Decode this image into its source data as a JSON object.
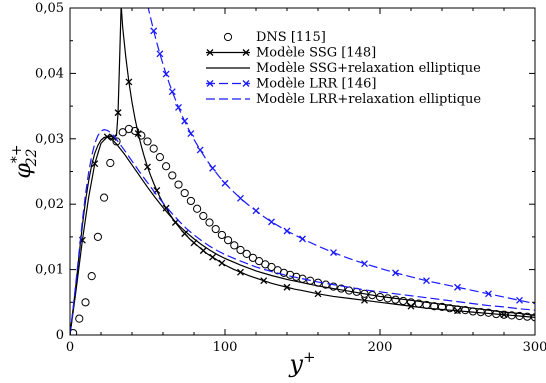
{
  "chart_data": {
    "type": "line",
    "title": "",
    "xlabel": "y",
    "xlabel_sup": "+",
    "ylabel": "φ",
    "ylabel_sub": "22",
    "ylabel_sup": "*+",
    "xlim": [
      0,
      300
    ],
    "ylim": [
      0,
      0.05
    ],
    "x_ticks": [
      0,
      100,
      200,
      300
    ],
    "x_tick_labels": [
      "0",
      "100",
      "200",
      "300"
    ],
    "y_ticks": [
      0,
      0.01,
      0.02,
      0.03,
      0.04,
      0.05
    ],
    "y_tick_labels": [
      "0",
      "0,01",
      "0,02",
      "0,03",
      "0,04",
      "0,05"
    ],
    "grid": false,
    "legend_position": "top-right",
    "series": [
      {
        "name": "DNS [115]",
        "style": "markers-circle",
        "color": "#000000",
        "x": [
          2,
          6,
          10,
          14,
          18,
          22,
          26,
          30,
          34,
          38,
          42,
          46,
          50,
          54,
          58,
          62,
          66,
          70,
          74,
          78,
          82,
          86,
          90,
          94,
          98,
          102,
          106,
          110,
          114,
          118,
          122,
          126,
          130,
          134,
          138,
          142,
          146,
          150,
          155,
          160,
          165,
          170,
          175,
          180,
          185,
          190,
          195,
          200,
          205,
          210,
          215,
          220,
          225,
          230,
          235,
          240,
          245,
          250,
          255,
          260,
          265,
          270,
          275,
          280,
          285,
          290,
          295,
          300
        ],
        "y": [
          0.0003,
          0.0025,
          0.005,
          0.009,
          0.015,
          0.021,
          0.0263,
          0.0296,
          0.031,
          0.0315,
          0.0312,
          0.0305,
          0.0296,
          0.0285,
          0.0272,
          0.0258,
          0.0244,
          0.023,
          0.0217,
          0.0205,
          0.0193,
          0.0182,
          0.0172,
          0.0162,
          0.0153,
          0.0145,
          0.0137,
          0.013,
          0.0124,
          0.0118,
          0.0113,
          0.0108,
          0.0104,
          0.0099,
          0.0095,
          0.0092,
          0.0089,
          0.0086,
          0.0083,
          0.008,
          0.0077,
          0.0074,
          0.0071,
          0.0068,
          0.0066,
          0.0063,
          0.0061,
          0.0058,
          0.0056,
          0.0054,
          0.0052,
          0.005,
          0.0048,
          0.0046,
          0.0044,
          0.0043,
          0.0041,
          0.0039,
          0.0038,
          0.0036,
          0.0035,
          0.0034,
          0.0032,
          0.0031,
          0.003,
          0.0029,
          0.0028,
          0.0027
        ]
      },
      {
        "name": "Modèle SSG [148]",
        "style": "solid-x",
        "color": "#000000",
        "x": [
          0,
          4,
          8,
          12,
          16,
          20,
          24,
          28,
          32,
          36,
          40,
          44,
          48,
          52,
          56,
          60,
          65,
          70,
          75,
          80,
          85,
          90,
          95,
          100,
          105,
          110,
          115,
          120,
          125,
          130,
          135,
          140,
          145,
          150,
          160,
          170,
          180,
          190,
          200,
          210,
          220,
          230,
          240,
          250,
          260,
          270,
          280,
          290,
          300
        ],
        "y": [
          0,
          0.007,
          0.015,
          0.022,
          0.027,
          0.03,
          0.03,
          0.029,
          0.028,
          0.027,
          0.026,
          0.025,
          0.024,
          0.023,
          0.022,
          0.021,
          0.0198,
          0.0186,
          0.0175,
          0.0165,
          0.0155,
          0.0146,
          0.0138,
          0.013,
          0.0123,
          0.0117,
          0.0111,
          0.0106,
          0.0101,
          0.0097,
          0.0093,
          0.0089,
          0.0086,
          0.0083,
          0.0077,
          0.0072,
          0.0067,
          0.0062,
          0.0058,
          0.0054,
          0.005,
          0.0047,
          0.0044,
          0.0041,
          0.0038,
          0.0035,
          0.0033,
          0.003,
          0.0028
        ],
        "y_left": [
          null,
          null,
          null,
          null,
          null,
          null,
          null,
          null,
          null,
          0.0555,
          0.05
        ],
        "dense_x": [
          33,
          34,
          36,
          38,
          40,
          42,
          44,
          46,
          48,
          50,
          52,
          54,
          56,
          58,
          60,
          62,
          64,
          66,
          68,
          70,
          72,
          74,
          76,
          78,
          80,
          82,
          84,
          86,
          88,
          90,
          92,
          94,
          96,
          98,
          100,
          105,
          110,
          115,
          120,
          125,
          130,
          135,
          140,
          145,
          150,
          160,
          170,
          180,
          190,
          200,
          210,
          220,
          230,
          240,
          250,
          260,
          270,
          280,
          290,
          300
        ],
        "dense_y": [
          0.0505,
          0.047,
          0.0425,
          0.0387,
          0.0356,
          0.033,
          0.0308,
          0.0289,
          0.0272,
          0.0257,
          0.0244,
          0.0232,
          0.0221,
          0.0211,
          0.0202,
          0.0194,
          0.0186,
          0.0179,
          0.0172,
          0.0166,
          0.016,
          0.0155,
          0.015,
          0.0145,
          0.0141,
          0.0137,
          0.0133,
          0.0129,
          0.0125,
          0.0122,
          0.0119,
          0.0116,
          0.0113,
          0.011,
          0.0107,
          0.0101,
          0.0096,
          0.0091,
          0.0087,
          0.0083,
          0.0079,
          0.0076,
          0.0073,
          0.007,
          0.0068,
          0.0063,
          0.0059,
          0.0056,
          0.0053,
          0.005,
          0.0047,
          0.0044,
          0.0041,
          0.0039,
          0.0037,
          0.0035,
          0.0033,
          0.0031,
          0.0029,
          0.0027
        ],
        "marker_step": 3
      },
      {
        "name": "Modèle SSG+relaxation elliptique",
        "style": "solid",
        "color": "#000000",
        "x": [
          0,
          2,
          4,
          6,
          8,
          10,
          12,
          14,
          16,
          18,
          20,
          22,
          24,
          26,
          28,
          30,
          35,
          40,
          45,
          50,
          55,
          60,
          65,
          70,
          75,
          80,
          85,
          90,
          95,
          100,
          110,
          120,
          130,
          140,
          150,
          160,
          170,
          180,
          190,
          200,
          210,
          220,
          230,
          240,
          250,
          260,
          270,
          280,
          290,
          300
        ],
        "y": [
          0,
          0.004,
          0.008,
          0.0125,
          0.0168,
          0.0205,
          0.0235,
          0.026,
          0.0278,
          0.029,
          0.0298,
          0.0302,
          0.0303,
          0.0301,
          0.0297,
          0.0292,
          0.0277,
          0.026,
          0.0243,
          0.0226,
          0.021,
          0.0195,
          0.0181,
          0.0168,
          0.0157,
          0.0147,
          0.0138,
          0.013,
          0.0123,
          0.0117,
          0.0107,
          0.0098,
          0.0091,
          0.0085,
          0.008,
          0.0075,
          0.0071,
          0.0067,
          0.0063,
          0.0059,
          0.0056,
          0.0053,
          0.005,
          0.0047,
          0.0044,
          0.0041,
          0.0038,
          0.0035,
          0.0033,
          0.003
        ]
      },
      {
        "name": "Modèle LRR [146]",
        "style": "dashed-x",
        "color": "#1a1aff",
        "x": [
          50,
          52,
          54,
          56,
          58,
          60,
          62,
          64,
          66,
          68,
          70,
          72,
          74,
          76,
          78,
          80,
          84,
          88,
          92,
          96,
          100,
          105,
          110,
          115,
          120,
          125,
          130,
          135,
          140,
          145,
          150,
          160,
          170,
          180,
          190,
          200,
          210,
          220,
          230,
          240,
          250,
          260,
          270,
          280,
          290,
          300
        ],
        "y": [
          0.0505,
          0.0485,
          0.0465,
          0.0447,
          0.043,
          0.0414,
          0.0399,
          0.0385,
          0.0372,
          0.036,
          0.0348,
          0.0337,
          0.0327,
          0.0317,
          0.0308,
          0.0299,
          0.0283,
          0.0268,
          0.0255,
          0.0243,
          0.0232,
          0.022,
          0.0209,
          0.0199,
          0.019,
          0.0181,
          0.0173,
          0.0166,
          0.0159,
          0.0153,
          0.0147,
          0.0136,
          0.0126,
          0.0117,
          0.0109,
          0.0102,
          0.0095,
          0.0089,
          0.0083,
          0.0078,
          0.0073,
          0.0068,
          0.0063,
          0.0058,
          0.0053,
          0.0048
        ],
        "marker_step": 2
      },
      {
        "name": "Modèle LRR+relaxation elliptique",
        "style": "dashed",
        "color": "#1a1aff",
        "x": [
          0,
          2,
          4,
          6,
          8,
          10,
          12,
          14,
          16,
          18,
          20,
          22,
          24,
          26,
          28,
          30,
          35,
          40,
          45,
          50,
          55,
          60,
          65,
          70,
          75,
          80,
          85,
          90,
          95,
          100,
          110,
          120,
          130,
          140,
          150,
          160,
          170,
          180,
          190,
          200,
          210,
          220,
          230,
          240,
          250,
          260,
          270,
          280,
          290,
          300
        ],
        "y": [
          0,
          0.004,
          0.0085,
          0.013,
          0.0175,
          0.0215,
          0.0248,
          0.0274,
          0.0293,
          0.0305,
          0.0312,
          0.0314,
          0.0313,
          0.031,
          0.0305,
          0.0299,
          0.0283,
          0.0266,
          0.0249,
          0.0233,
          0.0217,
          0.0202,
          0.0188,
          0.0175,
          0.0163,
          0.0153,
          0.0144,
          0.0136,
          0.0129,
          0.0123,
          0.0113,
          0.0104,
          0.0097,
          0.0091,
          0.0086,
          0.0081,
          0.0077,
          0.0073,
          0.0069,
          0.0066,
          0.0063,
          0.006,
          0.0057,
          0.0054,
          0.0051,
          0.0048,
          0.0045,
          0.0043,
          0.004,
          0.0038
        ]
      }
    ]
  }
}
